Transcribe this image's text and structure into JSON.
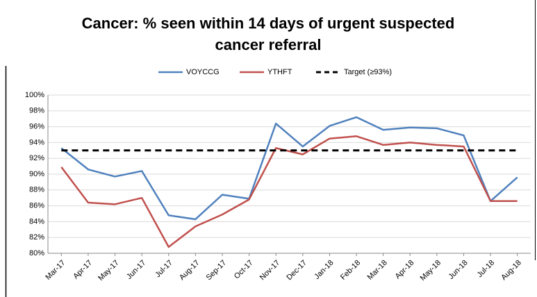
{
  "chart_data": {
    "type": "line",
    "title": "Cancer: % seen within 14 days of urgent suspected cancer referral",
    "categories": [
      "Mar-17",
      "Apr-17",
      "May-17",
      "Jun-17",
      "Jul-17",
      "Aug-17",
      "Sep-17",
      "Oct-17",
      "Nov-17",
      "Dec-17",
      "Jan-18",
      "Feb-18",
      "Mar-18",
      "Apr-18",
      "May-18",
      "Jun-18",
      "Jul-18",
      "Aug-18"
    ],
    "series": [
      {
        "name": "VOYCCG",
        "color": "#4f81bd",
        "line_style": "solid",
        "values": [
          93.3,
          90.6,
          89.7,
          90.4,
          84.8,
          84.3,
          87.4,
          86.9,
          96.4,
          93.5,
          96.1,
          97.2,
          95.6,
          95.9,
          95.8,
          94.9,
          86.6,
          89.6
        ]
      },
      {
        "name": "YTHFT",
        "color": "#c0504d",
        "line_style": "solid",
        "values": [
          90.9,
          86.4,
          86.2,
          87.0,
          80.8,
          83.4,
          84.9,
          86.8,
          93.3,
          92.5,
          94.5,
          94.8,
          93.7,
          94.0,
          93.7,
          93.5,
          86.6,
          86.6
        ]
      },
      {
        "name": "Target (≥93%)",
        "color": "#000000",
        "line_style": "dashed",
        "values": [
          93,
          93,
          93,
          93,
          93,
          93,
          93,
          93,
          93,
          93,
          93,
          93,
          93,
          93,
          93,
          93,
          93,
          93
        ]
      }
    ],
    "ylim": [
      80,
      100
    ],
    "yticks": [
      {
        "value": 80,
        "label": "80%"
      },
      {
        "value": 82,
        "label": "82%"
      },
      {
        "value": 84,
        "label": "84%"
      },
      {
        "value": 86,
        "label": "86%"
      },
      {
        "value": 88,
        "label": "88%"
      },
      {
        "value": 90,
        "label": "90%"
      },
      {
        "value": 92,
        "label": "92%"
      },
      {
        "value": 94,
        "label": "94%"
      },
      {
        "value": 96,
        "label": "96%"
      },
      {
        "value": 98,
        "label": "98%"
      },
      {
        "value": 100,
        "label": "100%"
      }
    ],
    "grid": true,
    "legend": "top"
  }
}
